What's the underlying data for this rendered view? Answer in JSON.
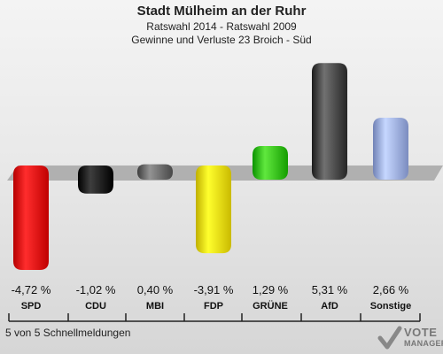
{
  "title": "Stadt Mülheim an der Ruhr",
  "subtitle_1": "Ratswahl 2014 - Ratswahl 2009",
  "subtitle_2": "Gewinne und Verluste 23 Broich - Süd",
  "footer": "5 von 5 Schnellmeldungen",
  "logo": {
    "line1": "VOTE",
    "line2": "MANAGER"
  },
  "chart_data": {
    "type": "bar",
    "categories": [
      "SPD",
      "CDU",
      "MBI",
      "FDP",
      "GRÜNE",
      "AfD",
      "Sonstige"
    ],
    "values": [
      -4.72,
      -1.02,
      0.4,
      -3.91,
      1.29,
      5.31,
      2.66
    ],
    "value_labels": [
      "-4,72 %",
      "-1,02 %",
      "0,40 %",
      "-3,91 %",
      "1,29 %",
      "5,31 %",
      "2,66 %"
    ],
    "colors": [
      "#dd0000",
      "#111111",
      "#666666",
      "#e8d800",
      "#33bb11",
      "#444444",
      "#99aadd"
    ],
    "ylim": [
      -5,
      6
    ]
  }
}
